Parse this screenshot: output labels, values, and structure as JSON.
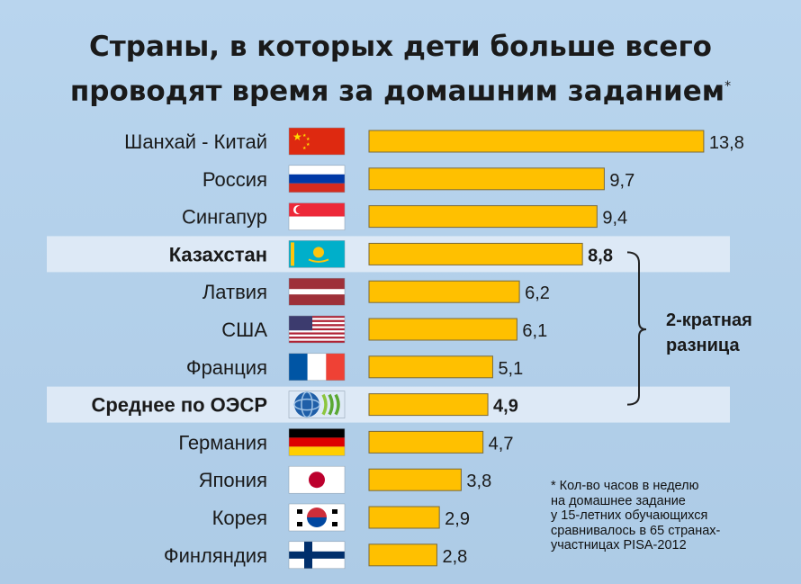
{
  "chart_data": {
    "type": "bar",
    "orientation": "horizontal",
    "title_line1": "Страны, в которых дети больше всего",
    "title_line2": "проводят время за домашним заданием",
    "title_mark": "*",
    "categories": [
      "Шанхай - Китай",
      "Россия",
      "Сингапур",
      "Казахстан",
      "Латвия",
      "США",
      "Франция",
      "Среднее по ОЭСР",
      "Германия",
      "Япония",
      "Корея",
      "Финляндия"
    ],
    "values": [
      13.8,
      9.7,
      9.4,
      8.8,
      6.2,
      6.1,
      5.1,
      4.9,
      4.7,
      3.8,
      2.9,
      2.8
    ],
    "labels": [
      "13,8",
      "9,7",
      "9,4",
      "8,8",
      "6,2",
      "6,1",
      "5,1",
      "4,9",
      "4,7",
      "3,8",
      "2,9",
      "2,8"
    ],
    "highlighted": [
      "Казахстан",
      "Среднее по ОЭСР"
    ],
    "flags": [
      "china",
      "russia",
      "singapore",
      "kazakhstan",
      "latvia",
      "usa",
      "france",
      "oecd",
      "germany",
      "japan",
      "korea",
      "finland"
    ],
    "bar_color": "#ffc000",
    "highlight_color": "#dde9f6",
    "bracket_label_line1": "2-кратная",
    "bracket_label_line2": "разница",
    "footnote": [
      "* Кол-во часов в неделю",
      "на домашнее задание",
      "у 15-летних обучающихся",
      "сравнивалось  в  65 странах-",
      "участницах PISA-2012"
    ]
  }
}
